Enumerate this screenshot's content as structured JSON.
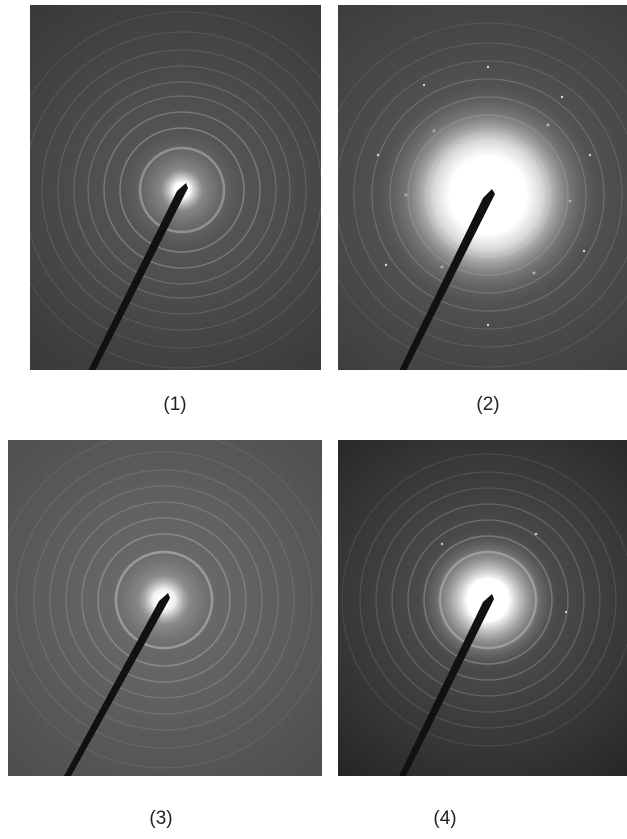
{
  "figure": {
    "panels": [
      {
        "label": "(1)",
        "halo": "small"
      },
      {
        "label": "(2)",
        "halo": "large"
      },
      {
        "label": "(3)",
        "halo": "small"
      },
      {
        "label": "(4)",
        "halo": "medium"
      }
    ]
  }
}
